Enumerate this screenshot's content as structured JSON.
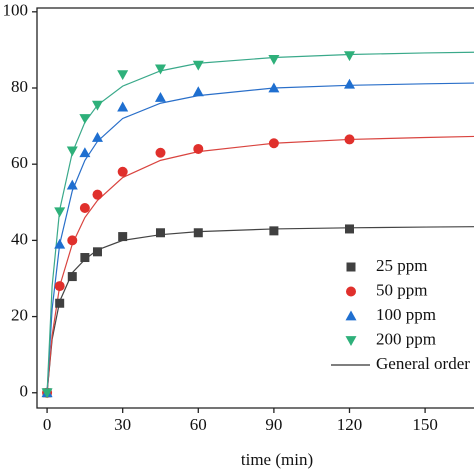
{
  "chart_data": {
    "type": "scatter",
    "xlabel": "time (min)",
    "x": [
      0,
      5,
      10,
      15,
      20,
      30,
      45,
      60,
      90,
      120
    ],
    "series": [
      {
        "name": "25 ppm",
        "color": "#404040",
        "marker": "square",
        "values": [
          0,
          23.5,
          30.5,
          35.5,
          37,
          41,
          42,
          42,
          42.5,
          43
        ]
      },
      {
        "name": "50 ppm",
        "color": "#e0302c",
        "marker": "circle",
        "values": [
          0,
          28,
          40,
          48.5,
          52,
          58,
          63,
          64,
          65.5,
          66.5
        ]
      },
      {
        "name": "100 ppm",
        "color": "#1f6fd0",
        "marker": "triangle-up",
        "values": [
          0,
          39,
          54.5,
          63,
          67,
          75,
          77.5,
          79,
          80,
          81
        ]
      },
      {
        "name": "200 ppm",
        "color": "#2eb07a",
        "marker": "triangle-down",
        "values": [
          0,
          47.5,
          63.5,
          72,
          75.5,
          83.5,
          85,
          86,
          87.5,
          88.5
        ]
      }
    ],
    "fit_name": "General order",
    "fit_legend_color": "#333333",
    "fit_x": [
      0,
      2,
      5,
      10,
      15,
      20,
      30,
      45,
      60,
      90,
      120,
      150,
      170
    ],
    "fits": [
      {
        "color": "#444444",
        "values": [
          0,
          14,
          24,
          31.5,
          35,
          37.5,
          40,
          41.5,
          42.3,
          43,
          43.3,
          43.5,
          43.6
        ]
      },
      {
        "color": "#d9443f",
        "values": [
          0,
          15,
          28,
          39,
          46,
          50.5,
          56.5,
          61,
          63.3,
          65.5,
          66.5,
          67,
          67.3
        ]
      },
      {
        "color": "#2a6fc9",
        "values": [
          0,
          22,
          39,
          53,
          61,
          66,
          72,
          76,
          78,
          80,
          80.7,
          81.1,
          81.3
        ]
      },
      {
        "color": "#3aa98a",
        "values": [
          0,
          28,
          48,
          63,
          71,
          75.5,
          80.5,
          84.5,
          86.5,
          88,
          88.8,
          89.2,
          89.4
        ]
      }
    ],
    "xlim": [
      -4,
      170
    ],
    "ylim": [
      -4,
      101
    ],
    "xticks": [
      0,
      30,
      60,
      90,
      120,
      150
    ],
    "yticks": [
      0,
      20,
      40,
      60,
      80,
      100
    ]
  }
}
